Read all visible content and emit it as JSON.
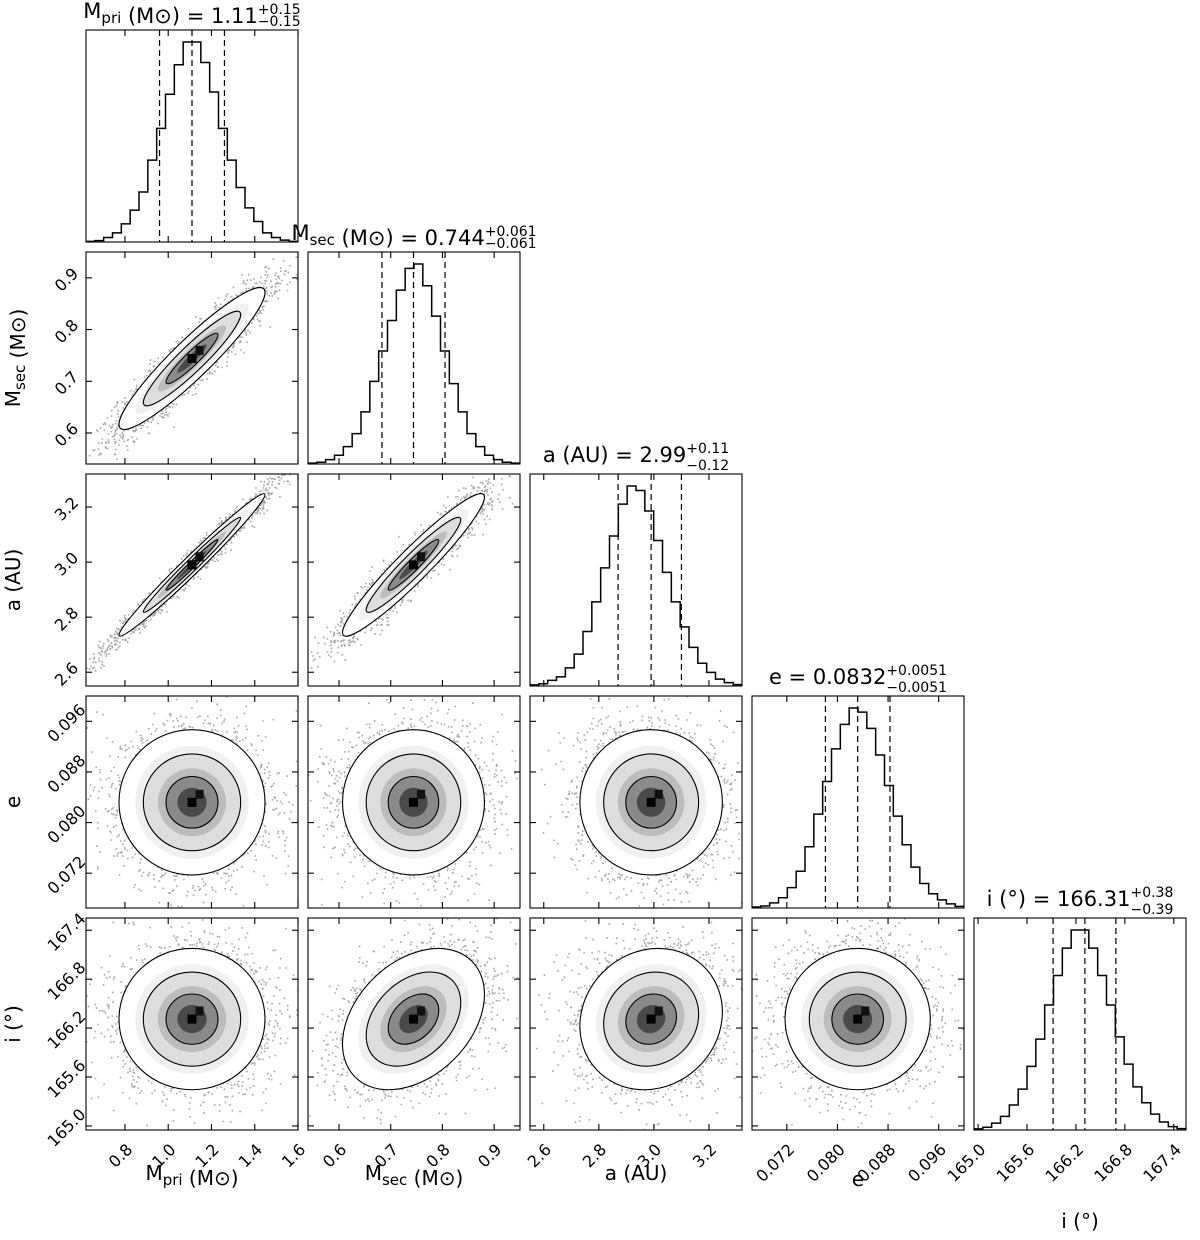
{
  "chart_data": {
    "type": "corner",
    "title": "",
    "colors": {
      "ink": "#000000",
      "background": "#ffffff"
    },
    "parameters": [
      {
        "key": "mpri",
        "axis_label": {
          "base": "M",
          "sub": "pri",
          "unit": " (M⊙)"
        },
        "title": {
          "lhs": "M",
          "lhs_sub": "pri",
          "lhs_unit": " (M⊙)",
          "value": " = 1.11",
          "plus": "+0.15",
          "minus": "−0.15"
        },
        "median": 1.11,
        "err_plus": 0.15,
        "err_minus": 0.15,
        "range": [
          0.62,
          1.6
        ],
        "ticks": [
          0.8,
          1.0,
          1.2,
          1.4,
          1.6
        ],
        "tick_labels": [
          "0.8",
          "1.0",
          "1.2",
          "1.4",
          "1.6"
        ],
        "hist": [
          0.3,
          0.6,
          2,
          4,
          8,
          14,
          22,
          36,
          50,
          65,
          78,
          88,
          88,
          79,
          66,
          50,
          36,
          24,
          15,
          9,
          4,
          2,
          0.8,
          0.3
        ]
      },
      {
        "key": "msec",
        "axis_label": {
          "base": "M",
          "sub": "sec",
          "unit": " (M⊙)"
        },
        "title": {
          "lhs": "M",
          "lhs_sub": "sec",
          "lhs_unit": " (M⊙)",
          "value": " = 0.744",
          "plus": "+0.061",
          "minus": "−0.061"
        },
        "median": 0.744,
        "err_plus": 0.061,
        "err_minus": 0.061,
        "range": [
          0.54,
          0.95
        ],
        "ticks": [
          0.6,
          0.7,
          0.8,
          0.9
        ],
        "tick_labels": [
          "0.6",
          "0.7",
          "0.8",
          "0.9"
        ],
        "hist": [
          0.4,
          0.8,
          2,
          4,
          8,
          14,
          24,
          38,
          52,
          66,
          80,
          90,
          92,
          82,
          68,
          52,
          37,
          24,
          14,
          8,
          4,
          2,
          0.8,
          0.4
        ]
      },
      {
        "key": "a",
        "axis_label": {
          "base": "a",
          "sub": "",
          "unit": " (AU)"
        },
        "title": {
          "lhs": "a",
          "lhs_sub": "",
          "lhs_unit": " (AU)",
          "value": " = 2.99",
          "plus": "+0.11",
          "minus": "−0.12"
        },
        "median": 2.99,
        "err_plus": 0.11,
        "err_minus": 0.12,
        "range": [
          2.55,
          3.32
        ],
        "ticks": [
          2.6,
          2.8,
          3.0,
          3.2
        ],
        "tick_labels": [
          "2.6",
          "2.8",
          "3.0",
          "3.2"
        ],
        "ticks_y": [
          2.6,
          2.8,
          3.0,
          3.2
        ],
        "tick_labels_y": [
          "2.6",
          "2.8",
          "3.0",
          "3.2"
        ],
        "hist": [
          0.5,
          1,
          2.5,
          4,
          8,
          14,
          24,
          37,
          52,
          66,
          80,
          88,
          86,
          77,
          64,
          50,
          37,
          26,
          17,
          10,
          6,
          3,
          1.5,
          0.6
        ]
      },
      {
        "key": "e",
        "axis_label": {
          "base": "e",
          "sub": "",
          "unit": ""
        },
        "title": {
          "lhs": "e",
          "lhs_sub": "",
          "lhs_unit": "",
          "value": " = 0.0832",
          "plus": "+0.0051",
          "minus": "−0.0051"
        },
        "median": 0.0832,
        "err_plus": 0.0051,
        "err_minus": 0.0051,
        "range": [
          0.0665,
          0.1
        ],
        "ticks": [
          0.072,
          0.08,
          0.088,
          0.096
        ],
        "tick_labels": [
          "0.072",
          "0.080",
          "0.088",
          "0.096"
        ],
        "hist": [
          0.5,
          1,
          2.5,
          5,
          10,
          18,
          30,
          46,
          62,
          78,
          90,
          98,
          96,
          88,
          75,
          60,
          45,
          31,
          20,
          12,
          7,
          4,
          2,
          0.8
        ]
      },
      {
        "key": "i",
        "axis_label": {
          "base": "i",
          "sub": "",
          "unit": " (°)"
        },
        "title": {
          "lhs": "i",
          "lhs_sub": "",
          "lhs_unit": " (°)",
          "value": " = 166.31",
          "plus": "+0.38",
          "minus": "−0.39"
        },
        "median": 166.31,
        "err_plus": 0.38,
        "err_minus": 0.39,
        "range": [
          164.95,
          167.55
        ],
        "ticks": [
          165.0,
          165.6,
          166.2,
          166.8,
          167.4
        ],
        "tick_labels": [
          "165.0",
          "165.6",
          "166.2",
          "166.8",
          "167.4"
        ],
        "ticks_y": [
          165.0,
          165.6,
          166.2,
          166.8,
          167.4
        ],
        "tick_labels_y": [
          "165.0",
          "165.6",
          "166.2",
          "166.8",
          "167.4"
        ],
        "hist": [
          0.5,
          1.2,
          3,
          6,
          11,
          18,
          28,
          40,
          55,
          68,
          80,
          88,
          88,
          80,
          68,
          55,
          41,
          29,
          19,
          12,
          7,
          3.5,
          1.5,
          0.6
        ]
      }
    ],
    "correlations": {
      "msec|mpri": 0.93,
      "a|mpri": 0.985,
      "a|msec": 0.95,
      "e|mpri": 0,
      "e|msec": 0,
      "e|a": 0,
      "i|mpri": 0,
      "i|msec": 0.35,
      "i|a": 0.1,
      "i|e": 0
    },
    "contour_levels": [
      "1σ",
      "2σ",
      "3σ"
    ]
  }
}
